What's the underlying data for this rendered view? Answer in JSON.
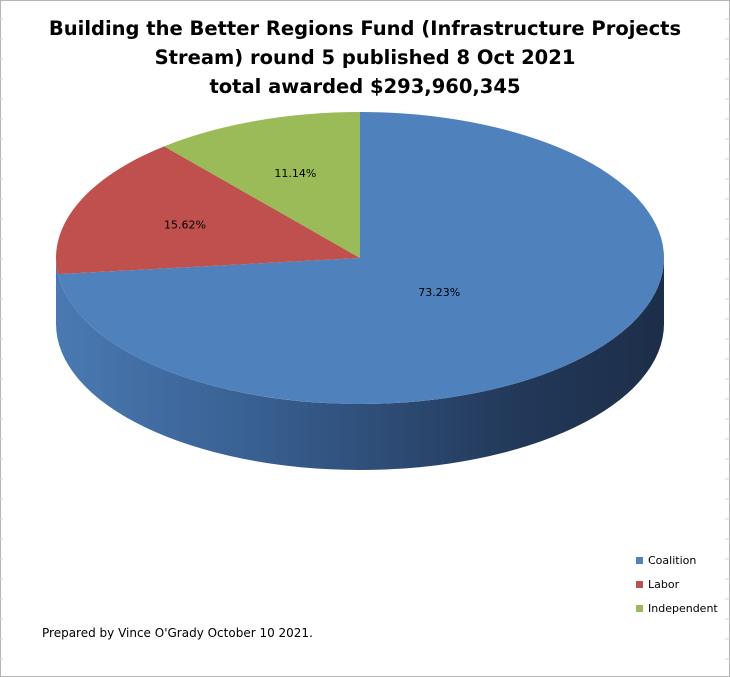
{
  "chart_data": {
    "type": "pie",
    "title_lines": [
      "Building the Better Regions Fund (Infrastructure Projects",
      "Stream) round 5 published 8 Oct 2021",
      "total awarded $293,960,345"
    ],
    "slices": [
      {
        "name": "Coalition",
        "value": 73.23,
        "label": "73.23%",
        "color": "#4f81bd"
      },
      {
        "name": "Labor",
        "value": 15.62,
        "label": "15.62%",
        "color": "#c0504d"
      },
      {
        "name": "Independent",
        "value": 11.14,
        "label": "11.14%",
        "color": "#9bbb59"
      }
    ],
    "legend_position": "bottom-right",
    "style": "3d-pie"
  },
  "footnote": "Prepared by Vince O'Grady October 10 2021."
}
